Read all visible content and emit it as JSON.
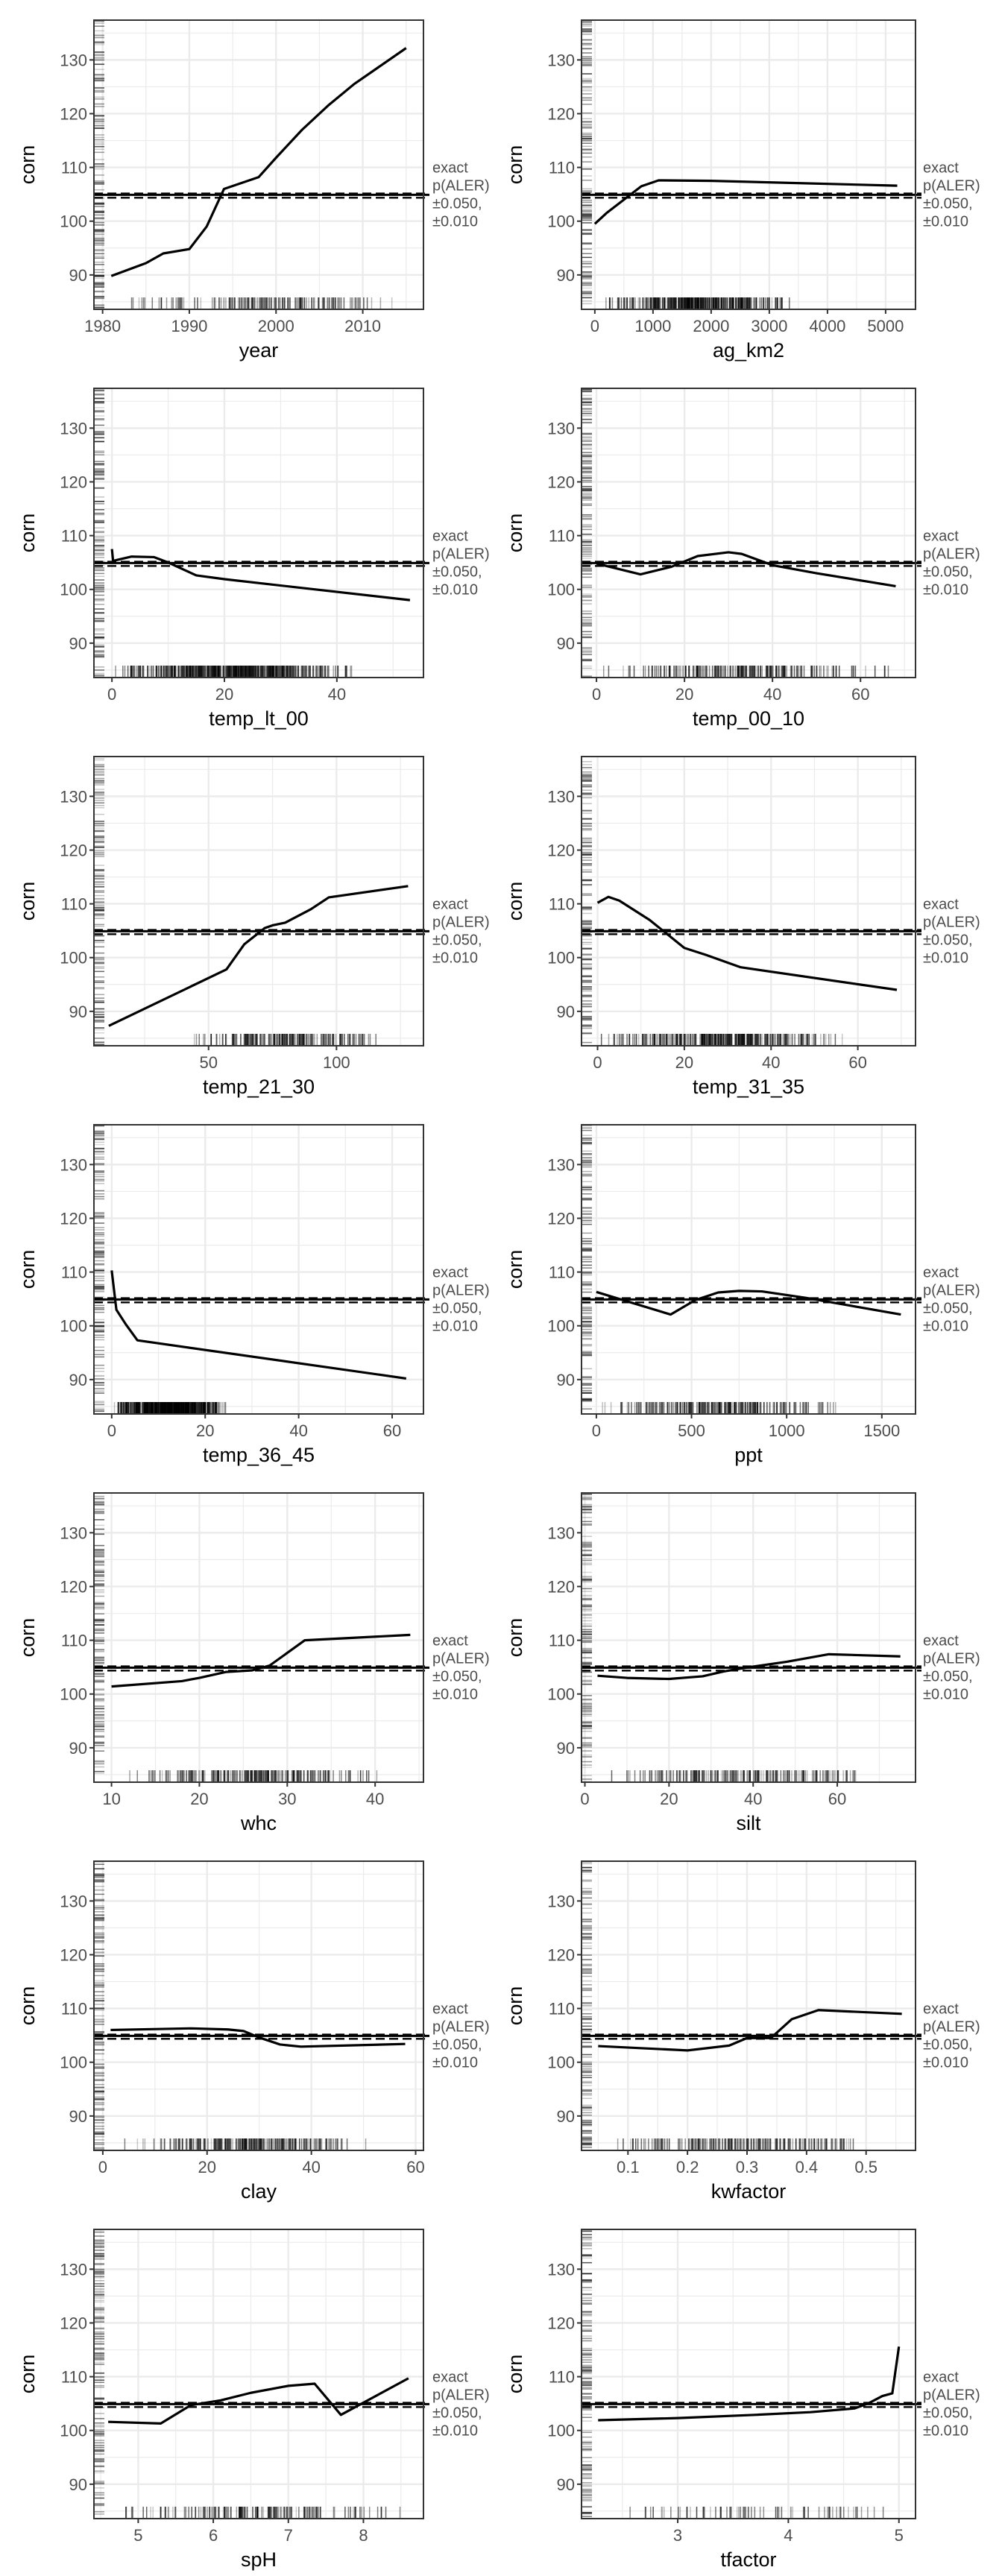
{
  "chart_data": {
    "type": "line",
    "ylabel": "corn",
    "ylim": [
      83.6,
      137.4
    ],
    "yticks": [
      90,
      100,
      110,
      120,
      130
    ],
    "reference_lines": {
      "exact": 104.9,
      "upper": 105.15,
      "lower": 104.35
    },
    "legend": [
      "exact",
      "p(ALER)",
      "±0.050,",
      "±0.010"
    ],
    "legend_placement": "right",
    "grid": true,
    "colors": {
      "line": "#000000",
      "grid": "#ebebeb",
      "text": "#4d4d4d",
      "border": "#333333"
    },
    "panels": [
      {
        "xlabel": "year",
        "xlim": [
          1979.0,
          2017.0
        ],
        "xticks": [
          1980,
          1990,
          2000,
          2010
        ],
        "xtick_labels": [
          "1980",
          "1990",
          "2000",
          "2010"
        ],
        "rug": [
          1981,
          2015,
          1
        ],
        "points": [
          [
            1981,
            89.8
          ],
          [
            1985,
            92.2
          ],
          [
            1987,
            94
          ],
          [
            1990,
            94.8
          ],
          [
            1992,
            99
          ],
          [
            1994,
            106
          ],
          [
            1998,
            108.2
          ],
          [
            2000,
            111.8
          ],
          [
            2003,
            117
          ],
          [
            2006,
            121.5
          ],
          [
            2009,
            125.5
          ],
          [
            2015,
            132.2
          ]
        ]
      },
      {
        "xlabel": "ag_km2",
        "xlim": [
          -229,
          5514
        ],
        "xticks": [
          0,
          1000,
          2000,
          3000,
          4000,
          5000
        ],
        "xtick_labels": [
          "0",
          "1000",
          "2000",
          "3000",
          "4000",
          "5000"
        ],
        "rug": [
          0,
          3500,
          2.2
        ],
        "points": [
          [
            0,
            99.5
          ],
          [
            200,
            101.5
          ],
          [
            500,
            104
          ],
          [
            800,
            106.5
          ],
          [
            1100,
            107.6
          ],
          [
            2000,
            107.5
          ],
          [
            5200,
            106.6
          ]
        ]
      },
      {
        "xlabel": "temp_lt_00",
        "xlim": [
          -3.2,
          55.4
        ],
        "xticks": [
          0,
          20,
          40
        ],
        "xtick_labels": [
          "0",
          "20",
          "40"
        ],
        "rug": [
          0,
          44,
          3
        ],
        "points": [
          [
            0,
            107.5
          ],
          [
            0.2,
            105.3
          ],
          [
            1,
            105.5
          ],
          [
            3.5,
            106.1
          ],
          [
            7.5,
            106
          ],
          [
            10,
            105
          ],
          [
            15,
            102.6
          ],
          [
            20,
            101.9
          ],
          [
            53,
            98
          ]
        ]
      },
      {
        "xlabel": "temp_00_10",
        "xlim": [
          -3.4,
          72.5
        ],
        "xticks": [
          0,
          20,
          40,
          60
        ],
        "xtick_labels": [
          "0",
          "20",
          "40",
          "60"
        ],
        "rug": [
          1,
          67,
          1.3
        ],
        "points": [
          [
            0,
            104.8
          ],
          [
            10,
            102.8
          ],
          [
            17,
            104.2
          ],
          [
            23,
            106.2
          ],
          [
            30,
            106.9
          ],
          [
            33,
            106.6
          ],
          [
            40,
            104.5
          ],
          [
            50,
            103
          ],
          [
            68,
            100.6
          ]
        ]
      },
      {
        "xlabel": "temp_21_30",
        "xlim": [
          5.2,
          134
        ],
        "xticks": [
          50,
          100
        ],
        "xtick_labels": [
          "50",
          "100"
        ],
        "rug": [
          39,
          120,
          1.2
        ],
        "points": [
          [
            11,
            87.3
          ],
          [
            57,
            97.8
          ],
          [
            64,
            102.5
          ],
          [
            72,
            105.5
          ],
          [
            75,
            106
          ],
          [
            80,
            106.5
          ],
          [
            90,
            109
          ],
          [
            97,
            111.2
          ],
          [
            128,
            113.3
          ]
        ]
      },
      {
        "xlabel": "temp_31_35",
        "xlim": [
          -3.7,
          73.3
        ],
        "xticks": [
          0,
          20,
          40,
          60
        ],
        "xtick_labels": [
          "0",
          "20",
          "40",
          "60"
        ],
        "rug": [
          0,
          58,
          2
        ],
        "points": [
          [
            0,
            110.2
          ],
          [
            2.5,
            111.3
          ],
          [
            5,
            110.6
          ],
          [
            12,
            107
          ],
          [
            20,
            101.8
          ],
          [
            25,
            100.5
          ],
          [
            33,
            98.2
          ],
          [
            69,
            94
          ]
        ]
      },
      {
        "xlabel": "temp_36_45",
        "xlim": [
          -3.8,
          66.7
        ],
        "xticks": [
          0,
          20,
          40,
          60
        ],
        "xtick_labels": [
          "0",
          "20",
          "40",
          "60"
        ],
        "rug": [
          0,
          25,
          3.5
        ],
        "points": [
          [
            0,
            110.3
          ],
          [
            1,
            103
          ],
          [
            3,
            100.3
          ],
          [
            5.5,
            97.3
          ],
          [
            63,
            90.2
          ]
        ]
      },
      {
        "xlabel": "ppt",
        "xlim": [
          -78,
          1677
        ],
        "xticks": [
          0,
          500,
          1000,
          1500
        ],
        "xtick_labels": [
          "0",
          "500",
          "1000",
          "1500"
        ],
        "rug": [
          10,
          1290,
          1.4
        ],
        "points": [
          [
            0,
            106.3
          ],
          [
            390,
            102.1
          ],
          [
            520,
            104.8
          ],
          [
            640,
            106.2
          ],
          [
            750,
            106.5
          ],
          [
            870,
            106.4
          ],
          [
            1100,
            105.2
          ],
          [
            1600,
            102.1
          ]
        ]
      },
      {
        "xlabel": "whc",
        "xlim": [
          8.0,
          45.5
        ],
        "xticks": [
          10,
          20,
          30,
          40
        ],
        "xtick_labels": [
          "10",
          "20",
          "30",
          "40"
        ],
        "rug": [
          11,
          42,
          1.3
        ],
        "points": [
          [
            10,
            101.4
          ],
          [
            18,
            102.4
          ],
          [
            20,
            103
          ],
          [
            23,
            104.1
          ],
          [
            26,
            104.4
          ],
          [
            28,
            105.3
          ],
          [
            32,
            110
          ],
          [
            44,
            111
          ]
        ]
      },
      {
        "xlabel": "silt",
        "xlim": [
          -0.8,
          78.6
        ],
        "xticks": [
          0,
          20,
          40,
          60
        ],
        "xtick_labels": [
          "0",
          "20",
          "40",
          "60"
        ],
        "rug": [
          5,
          71,
          1.2
        ],
        "points": [
          [
            3,
            103.4
          ],
          [
            10,
            103
          ],
          [
            20,
            102.8
          ],
          [
            28,
            103.3
          ],
          [
            33,
            104.2
          ],
          [
            40,
            105.1
          ],
          [
            48,
            106
          ],
          [
            58,
            107.4
          ],
          [
            75,
            107
          ]
        ]
      },
      {
        "xlabel": "clay",
        "xlim": [
          -1.7,
          61.5
        ],
        "xticks": [
          0,
          20,
          40,
          60
        ],
        "xtick_labels": [
          "0",
          "20",
          "40",
          "60"
        ],
        "rug": [
          4,
          53,
          1.5
        ],
        "points": [
          [
            1.5,
            106
          ],
          [
            17,
            106.3
          ],
          [
            24,
            106.1
          ],
          [
            27,
            105.8
          ],
          [
            30,
            104.6
          ],
          [
            34,
            103.3
          ],
          [
            38,
            102.9
          ],
          [
            58,
            103.4
          ]
        ]
      },
      {
        "xlabel": "kwfactor",
        "xlim": [
          0.022,
          0.583
        ],
        "xticks": [
          0.1,
          0.2,
          0.3,
          0.4,
          0.5
        ],
        "xtick_labels": [
          "0.1",
          "0.2",
          "0.3",
          "0.4",
          "0.5"
        ],
        "rug": [
          0.06,
          0.52,
          1.2
        ],
        "points": [
          [
            0.05,
            103
          ],
          [
            0.2,
            102.2
          ],
          [
            0.27,
            103.1
          ],
          [
            0.3,
            104.5
          ],
          [
            0.34,
            104.5
          ],
          [
            0.375,
            108
          ],
          [
            0.42,
            109.7
          ],
          [
            0.56,
            109
          ]
        ]
      },
      {
        "xlabel": "spH",
        "xlim": [
          4.41,
          8.8
        ],
        "xticks": [
          5,
          6,
          7,
          8
        ],
        "xtick_labels": [
          "5",
          "6",
          "7",
          "8"
        ],
        "rug": [
          4.6,
          8.5,
          1
        ],
        "points": [
          [
            4.6,
            101.6
          ],
          [
            5.3,
            101.3
          ],
          [
            5.7,
            104.7
          ],
          [
            6.1,
            105.6
          ],
          [
            6.5,
            107
          ],
          [
            7,
            108.3
          ],
          [
            7.35,
            108.7
          ],
          [
            7.7,
            102.9
          ],
          [
            8.6,
            109.7
          ]
        ]
      },
      {
        "xlabel": "tfactor",
        "xlim": [
          2.13,
          5.15
        ],
        "xticks": [
          3,
          4,
          5
        ],
        "xtick_labels": [
          "3",
          "4",
          "5"
        ],
        "rug": [
          2.5,
          5.02,
          0.45
        ],
        "points": [
          [
            2.28,
            101.9
          ],
          [
            3,
            102.3
          ],
          [
            3.7,
            102.9
          ],
          [
            4.2,
            103.4
          ],
          [
            4.6,
            104.1
          ],
          [
            4.72,
            105
          ],
          [
            4.85,
            106.4
          ],
          [
            4.94,
            106.9
          ],
          [
            5,
            115.6
          ]
        ]
      }
    ]
  }
}
